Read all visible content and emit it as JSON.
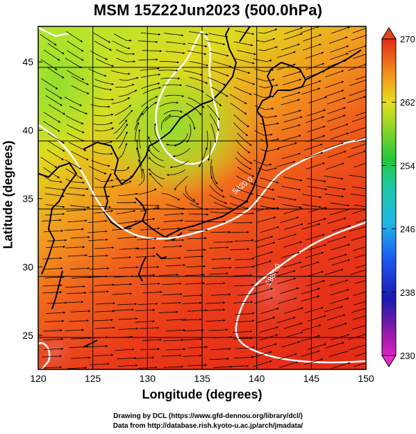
{
  "title": "MSM 15Z22Jun2023 (500.0hPa)",
  "x_axis": {
    "label": "Longitude (degrees)",
    "ticks": [
      "120",
      "125",
      "130",
      "135",
      "140",
      "145",
      "150"
    ],
    "range": [
      120,
      150
    ]
  },
  "y_axis": {
    "label": "Latitude  (degrees)",
    "ticks": [
      "25",
      "30",
      "35",
      "40",
      "45"
    ],
    "range": [
      22.5,
      47.6
    ]
  },
  "colorbar": {
    "ticks": [
      "230",
      "238",
      "246",
      "254",
      "262",
      "270"
    ],
    "range": [
      230,
      270
    ]
  },
  "contours": [
    {
      "label": "5820.0",
      "lon": 138,
      "lat": 35.3
    },
    {
      "label": "5880.0",
      "lon": 141.2,
      "lat": 28.6
    }
  ],
  "credits": {
    "line1": "Drawing by DCL (https://www.gfd-dennou.org/library/dcl/)",
    "line2": "Data from http://database.rish.kyoto-u.ac.jp/arch/jmadata/"
  }
}
